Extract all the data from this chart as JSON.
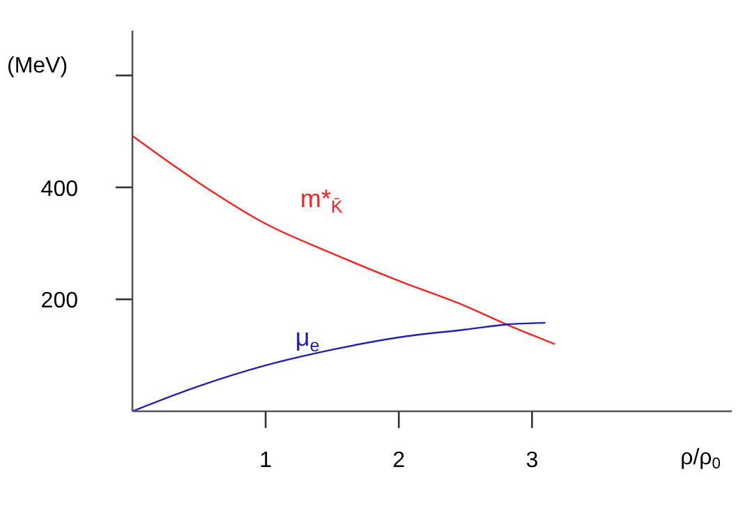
{
  "chart_data": {
    "type": "line",
    "ylabel": "(MeV)",
    "xlabel": "ρ/ρ$_{0}$",
    "xlim": [
      0,
      4.5
    ],
    "ylim": [
      0,
      680
    ],
    "xticks": [
      1,
      2,
      3
    ],
    "yticks": [
      200,
      400,
      {
        "value": 600,
        "label": null
      }
    ],
    "marker": "none",
    "line_style": "solid",
    "series": [
      {
        "name": "m*$_{K̄}$",
        "color": "#ff2020",
        "x": [
          0,
          0.5,
          1,
          1.5,
          2,
          2.5,
          2.81,
          3.17
        ],
        "values": [
          492,
          408,
          335,
          282,
          233,
          188,
          155,
          120
        ]
      },
      {
        "name": "μ$_{e}$",
        "color": "#2020b0",
        "x": [
          0,
          0.5,
          1,
          1.5,
          2,
          2.5,
          2.81,
          3.1
        ],
        "values": [
          0,
          45,
          82,
          110,
          132,
          146,
          155,
          158
        ]
      }
    ]
  }
}
